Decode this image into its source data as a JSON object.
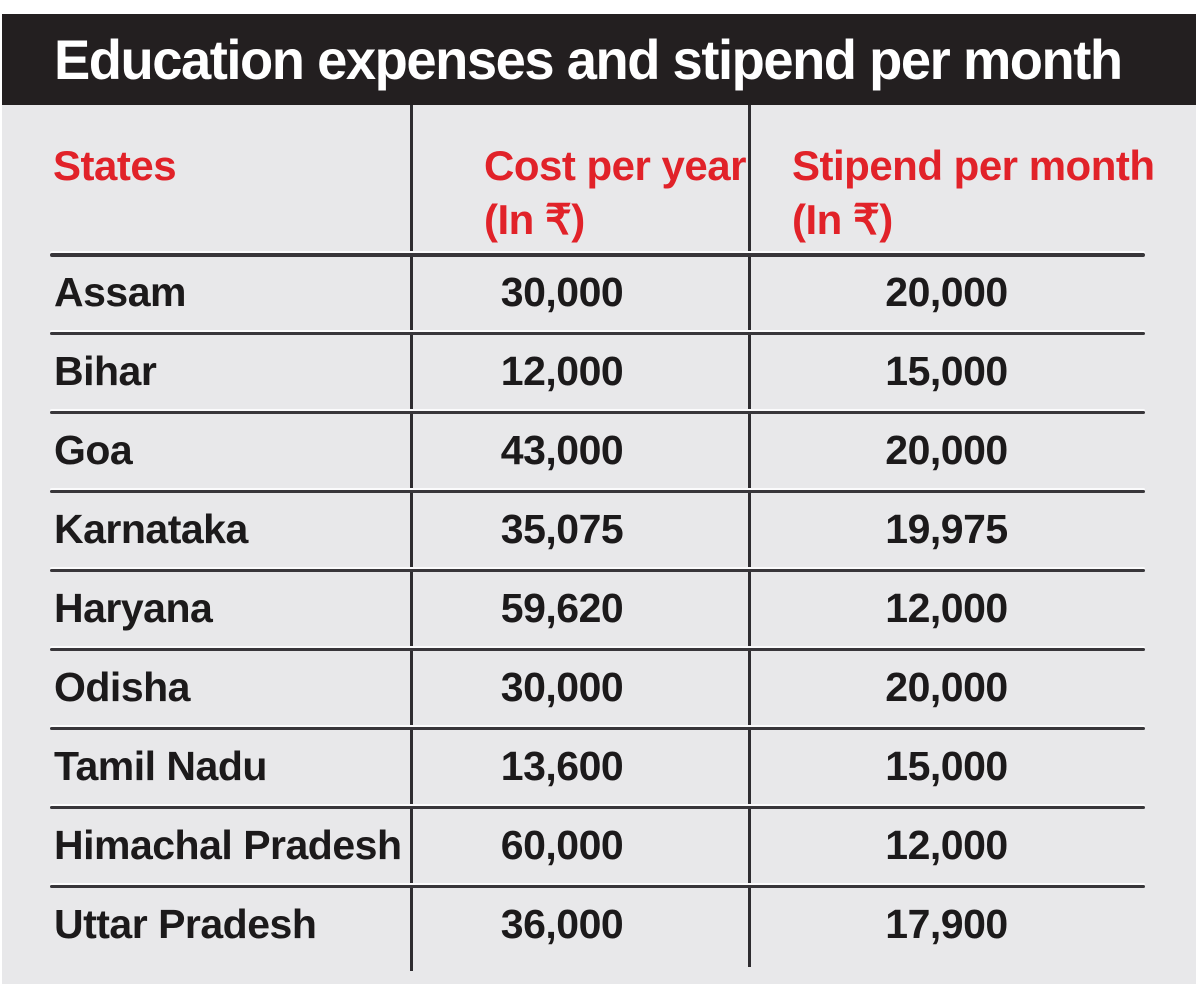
{
  "title": "Education expenses and stipend per month",
  "table": {
    "columns": [
      {
        "label": "States",
        "sublabel": ""
      },
      {
        "label": "Cost per year",
        "sublabel": "(In ₹)"
      },
      {
        "label": "Stipend per month",
        "sublabel": "(In ₹)"
      }
    ],
    "rows": [
      {
        "state": "Assam",
        "cost_per_year": "30,000",
        "stipend_per_month": "20,000"
      },
      {
        "state": "Bihar",
        "cost_per_year": "12,000",
        "stipend_per_month": "15,000"
      },
      {
        "state": "Goa",
        "cost_per_year": "43,000",
        "stipend_per_month": "20,000"
      },
      {
        "state": "Karnataka",
        "cost_per_year": "35,075",
        "stipend_per_month": "19,975"
      },
      {
        "state": "Haryana",
        "cost_per_year": "59,620",
        "stipend_per_month": "12,000"
      },
      {
        "state": "Odisha",
        "cost_per_year": "30,000",
        "stipend_per_month": "20,000"
      },
      {
        "state": "Tamil Nadu",
        "cost_per_year": "13,600",
        "stipend_per_month": "15,000"
      },
      {
        "state": "Himachal Pradesh",
        "cost_per_year": "60,000",
        "stipend_per_month": "12,000"
      },
      {
        "state": "Uttar Pradesh",
        "cost_per_year": "36,000",
        "stipend_per_month": "17,900"
      }
    ]
  },
  "colors": {
    "title_bar_bg": "#231f20",
    "title_text": "#ffffff",
    "table_bg": "#e8e8ea",
    "header_red": "#e12229",
    "body_text": "#1c1a1b",
    "rule_line": "#38363a"
  },
  "chart_data": {
    "type": "table",
    "title": "Education expenses and stipend per month",
    "columns": [
      "States",
      "Cost per year (In ₹)",
      "Stipend per month (In ₹)"
    ],
    "rows": [
      [
        "Assam",
        30000,
        20000
      ],
      [
        "Bihar",
        12000,
        15000
      ],
      [
        "Goa",
        43000,
        20000
      ],
      [
        "Karnataka",
        35075,
        19975
      ],
      [
        "Haryana",
        59620,
        12000
      ],
      [
        "Odisha",
        30000,
        20000
      ],
      [
        "Tamil Nadu",
        13600,
        15000
      ],
      [
        "Himachal Pradesh",
        60000,
        12000
      ],
      [
        "Uttar Pradesh",
        36000,
        17900
      ]
    ]
  }
}
